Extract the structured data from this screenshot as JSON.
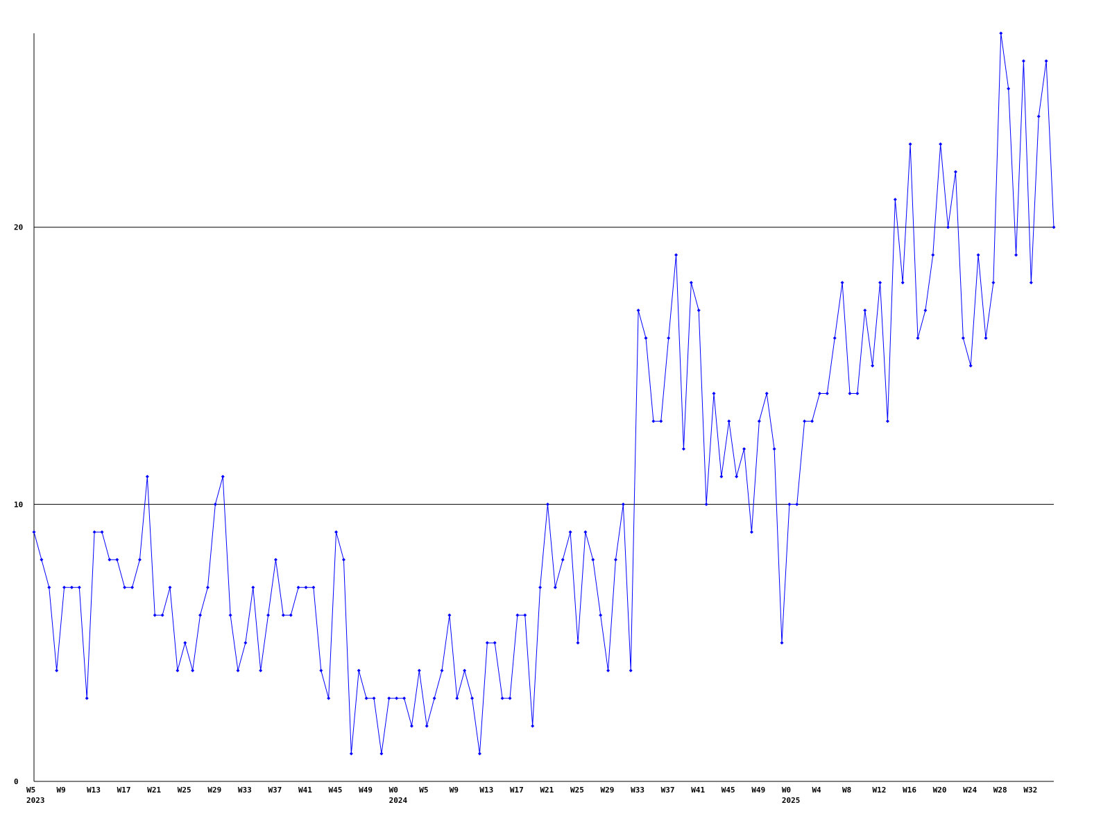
{
  "chart_data": {
    "type": "line",
    "color": "#0000ff",
    "axis_color": "#000000",
    "ylim": [
      0,
      27
    ],
    "yticks": [
      0,
      10,
      20
    ],
    "grid": true,
    "categories": [
      "W5",
      null,
      null,
      null,
      "W9",
      null,
      null,
      null,
      "W13",
      null,
      null,
      null,
      "W17",
      null,
      null,
      null,
      "W21",
      null,
      null,
      null,
      "W25",
      null,
      null,
      null,
      "W29",
      null,
      null,
      null,
      "W33",
      null,
      null,
      null,
      "W37",
      null,
      null,
      null,
      "W41",
      null,
      null,
      null,
      "W45",
      null,
      null,
      null,
      "W49",
      null,
      null,
      null,
      "W0",
      null,
      null,
      null,
      "W5",
      null,
      null,
      null,
      "W9",
      null,
      null,
      null,
      "W13",
      null,
      null,
      null,
      "W17",
      null,
      null,
      null,
      "W21",
      null,
      null,
      null,
      "W25",
      null,
      null,
      null,
      "W29",
      null,
      null,
      null,
      "W33",
      null,
      null,
      null,
      "W37",
      null,
      null,
      null,
      "W41",
      null,
      null,
      null,
      "W45",
      null,
      null,
      null,
      "W49",
      null,
      null,
      null,
      "W0",
      null,
      null,
      null,
      "W4",
      null,
      null,
      null,
      "W8",
      null,
      null,
      null,
      "W12",
      null,
      null,
      null,
      "W16",
      null,
      null,
      null,
      "W20",
      null,
      null,
      null,
      "W24",
      null,
      null,
      null,
      "W28",
      null,
      null,
      null,
      "W32",
      null,
      null,
      null
    ],
    "years": [
      "2023",
      null,
      null,
      null,
      null,
      null,
      null,
      null,
      null,
      null,
      null,
      null,
      null,
      null,
      null,
      null,
      null,
      null,
      null,
      null,
      null,
      null,
      null,
      null,
      null,
      null,
      null,
      null,
      null,
      null,
      null,
      null,
      null,
      null,
      null,
      null,
      null,
      null,
      null,
      null,
      null,
      null,
      null,
      null,
      null,
      null,
      null,
      null,
      "2024",
      null,
      null,
      null,
      null,
      null,
      null,
      null,
      null,
      null,
      null,
      null,
      null,
      null,
      null,
      null,
      null,
      null,
      null,
      null,
      null,
      null,
      null,
      null,
      null,
      null,
      null,
      null,
      null,
      null,
      null,
      null,
      null,
      null,
      null,
      null,
      null,
      null,
      null,
      null,
      null,
      null,
      null,
      null,
      null,
      null,
      null,
      null,
      null,
      null,
      null,
      null,
      "2025",
      null,
      null,
      null,
      null,
      null,
      null,
      null,
      null,
      null,
      null,
      null,
      null,
      null,
      null,
      null,
      null,
      null,
      null,
      null,
      null,
      null,
      null,
      null,
      null,
      null,
      null,
      null,
      null,
      null,
      null,
      null,
      null,
      null,
      null,
      null
    ],
    "values": [
      9,
      8,
      7,
      4,
      7,
      7,
      7,
      3,
      9,
      9,
      8,
      8,
      7,
      7,
      8,
      11,
      6,
      6,
      7,
      4,
      5,
      4,
      6,
      7,
      10,
      11,
      6,
      4,
      5,
      7,
      4,
      6,
      8,
      6,
      6,
      7,
      7,
      7,
      4,
      3,
      9,
      8,
      1,
      4,
      3,
      3,
      1,
      3,
      3,
      3,
      2,
      4,
      2,
      3,
      4,
      6,
      3,
      4,
      3,
      1,
      5,
      5,
      3,
      3,
      6,
      6,
      2,
      7,
      10,
      7,
      8,
      9,
      5,
      9,
      8,
      6,
      4,
      8,
      10,
      4,
      17,
      16,
      13,
      13,
      16,
      19,
      12,
      18,
      17,
      10,
      14,
      11,
      13,
      11,
      12,
      9,
      13,
      14,
      12,
      5,
      10,
      10,
      13,
      13,
      14,
      14,
      16,
      18,
      14,
      14,
      17,
      15,
      18,
      13,
      21,
      18,
      23,
      16,
      17,
      19,
      23,
      20,
      22,
      16,
      15,
      19,
      16,
      18,
      27,
      25,
      19,
      26,
      18,
      24,
      26,
      20
    ]
  }
}
